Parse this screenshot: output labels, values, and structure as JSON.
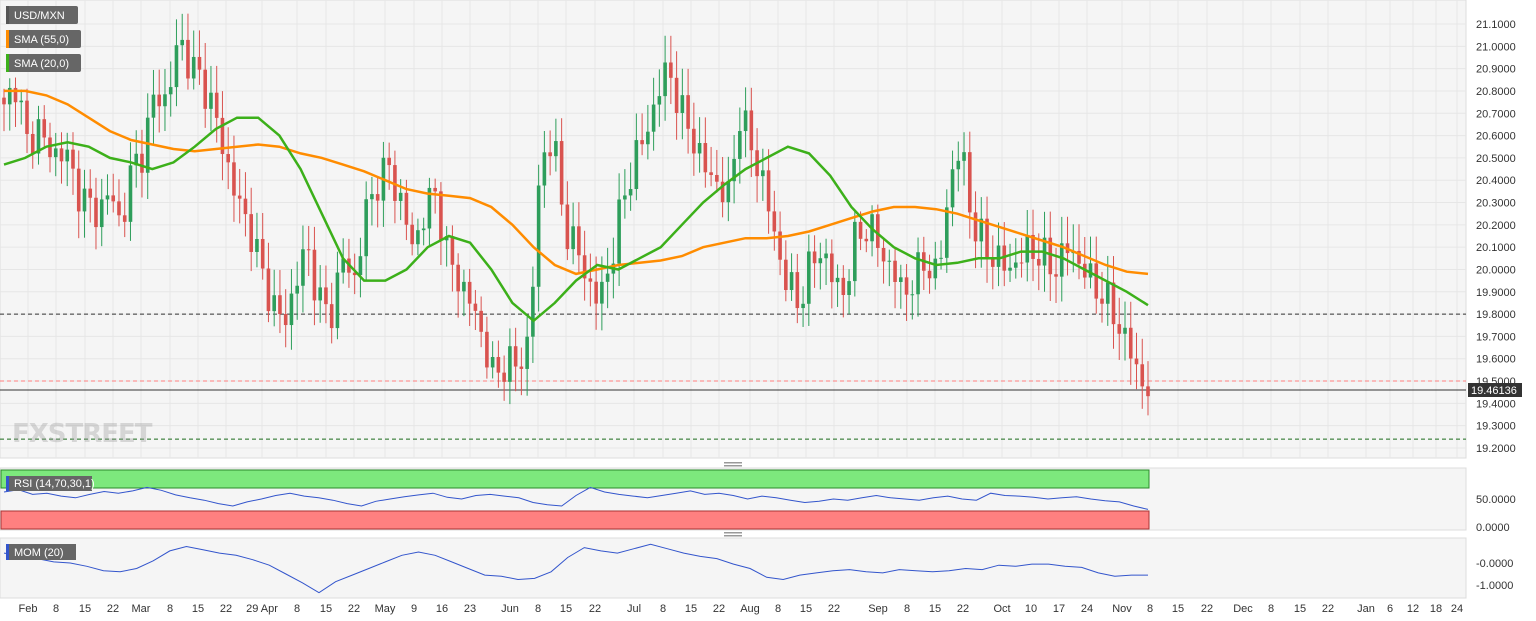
{
  "watermark": "FXSTREET",
  "colors": {
    "up": "#2e9e5b",
    "down": "#d9534f",
    "sma55": "#ff8c00",
    "sma20": "#3cb01a",
    "rsi_line": "#3355cc",
    "mom_line": "#3355cc",
    "rsi_overbought": "#7de87d",
    "rsi_oversold": "#ff8080",
    "grid": "#e6e6e6",
    "panel_bg": "#f5f5f5"
  },
  "legend": [
    {
      "label": "USD/MXN",
      "swatch": "#555555"
    },
    {
      "label": "SMA (55,0)",
      "swatch": "#ff8c00"
    },
    {
      "label": "SMA (20,0)",
      "swatch": "#3cb01a"
    }
  ],
  "price_badge": "19.46136",
  "rsi_label": "RSI (14,70,30,1)",
  "mom_label": "MOM (20)",
  "chart_data": [
    {
      "type": "candlestick",
      "title": "USD/MXN",
      "ylim": [
        19.15,
        21.15
      ],
      "y_ticks": [
        "19.2000",
        "19.3000",
        "19.4000",
        "19.5000",
        "19.6000",
        "19.7000",
        "19.8000",
        "19.9000",
        "20.0000",
        "20.1000",
        "20.2000",
        "20.3000",
        "20.4000",
        "20.5000",
        "20.6000",
        "20.7000",
        "20.8000",
        "20.9000",
        "21.0000",
        "21.1000"
      ],
      "x_ticks": [
        "Feb",
        "8",
        "15",
        "22",
        "Mar",
        "8",
        "15",
        "22",
        "29 Apr",
        "8",
        "15",
        "22",
        "May",
        "9",
        "16",
        "23",
        "Jun",
        "8",
        "15",
        "22",
        "Jul",
        "8",
        "15",
        "22",
        "Aug",
        "8",
        "15",
        "22",
        "Sep",
        "8",
        "15",
        "22",
        "Oct",
        "10",
        "17",
        "24",
        "Nov",
        "8",
        "15",
        "22",
        "Dec",
        "8",
        "15",
        "22",
        "Jan",
        "6",
        "12",
        "18",
        "24"
      ],
      "horizontal_levels": [
        {
          "value": 19.8,
          "style": "dashed",
          "color": "#333333"
        },
        {
          "value": 19.5,
          "style": "dashed",
          "color": "#ff8080"
        },
        {
          "value": 19.24,
          "style": "dashed",
          "color": "#1a6b1a"
        },
        {
          "value": 19.46,
          "style": "solid",
          "color": "#333333"
        }
      ],
      "ohlc_anchor_closes": [
        20.7,
        20.85,
        20.55,
        20.65,
        20.5,
        20.55,
        20.4,
        20.3,
        20.25,
        20.35,
        20.2,
        20.45,
        20.55,
        20.8,
        20.75,
        21.05,
        20.9,
        20.85,
        20.7,
        20.5,
        20.3,
        20.2,
        20.0,
        19.85,
        19.75,
        19.95,
        20.1,
        19.85,
        19.8,
        20.05,
        19.95,
        20.25,
        20.4,
        20.45,
        20.3,
        20.1,
        20.25,
        20.35,
        20.05,
        19.95,
        19.85,
        19.7,
        19.5,
        19.6,
        19.55,
        19.7,
        20.5,
        20.6,
        20.2,
        20.1,
        19.95,
        19.85,
        20.05,
        20.3,
        20.5,
        20.6,
        20.8,
        20.9,
        20.7,
        20.6,
        20.45,
        20.4,
        20.3,
        20.7,
        20.55,
        20.4,
        20.15,
        19.95,
        19.85,
        20.0,
        20.1,
        19.95,
        19.9,
        20.15,
        20.2,
        20.1,
        20.0,
        19.9,
        19.95,
        20.05,
        19.95,
        20.4,
        20.55,
        20.2,
        20.1,
        20.05,
        20.0,
        20.05,
        20.1,
        20.05,
        20.0,
        20.1,
        20.05,
        19.95,
        19.9,
        19.8,
        19.7,
        19.55,
        19.46
      ],
      "series": [
        {
          "name": "SMA (55,0)",
          "values": [
            20.8,
            20.8,
            20.78,
            20.74,
            20.68,
            20.62,
            20.58,
            20.56,
            20.54,
            20.53,
            20.54,
            20.55,
            20.56,
            20.55,
            20.52,
            20.5,
            20.47,
            20.44,
            20.4,
            20.36,
            20.34,
            20.33,
            20.32,
            20.28,
            20.2,
            20.1,
            20.02,
            19.98,
            20.0,
            20.02,
            20.03,
            20.04,
            20.06,
            20.1,
            20.12,
            20.14,
            20.14,
            20.15,
            20.17,
            20.2,
            20.23,
            20.26,
            20.28,
            20.28,
            20.27,
            20.25,
            20.22,
            20.19,
            20.16,
            20.13,
            20.1,
            20.06,
            20.02,
            19.99,
            19.98
          ]
        },
        {
          "name": "SMA (20,0)",
          "values": [
            20.47,
            20.5,
            20.55,
            20.57,
            20.55,
            20.5,
            20.48,
            20.45,
            20.48,
            20.55,
            20.63,
            20.68,
            20.68,
            20.6,
            20.45,
            20.25,
            20.05,
            19.95,
            19.95,
            20.0,
            20.1,
            20.15,
            20.12,
            20.0,
            19.85,
            19.77,
            19.85,
            19.95,
            20.02,
            20.0,
            20.05,
            20.1,
            20.2,
            20.3,
            20.38,
            20.45,
            20.5,
            20.55,
            20.52,
            20.42,
            20.28,
            20.18,
            20.1,
            20.05,
            20.02,
            20.03,
            20.05,
            20.05,
            20.08,
            20.08,
            20.05,
            20.0,
            19.95,
            19.9,
            19.84
          ]
        }
      ]
    },
    {
      "type": "line",
      "title": "RSI (14,70,30,1)",
      "ylim": [
        0,
        100
      ],
      "y_ticks": [
        "50.0000",
        "0.0000"
      ],
      "series": [
        {
          "name": "RSI (14,70,30,1)",
          "values": [
            62,
            66,
            58,
            60,
            55,
            52,
            58,
            63,
            60,
            64,
            70,
            65,
            57,
            52,
            48,
            42,
            38,
            45,
            50,
            56,
            60,
            55,
            52,
            48,
            42,
            38,
            46,
            50,
            54,
            57,
            60,
            53,
            50,
            56,
            58,
            55,
            52,
            44,
            40,
            38,
            56,
            70,
            62,
            58,
            55,
            52,
            56,
            60,
            64,
            58,
            60,
            56,
            50,
            55,
            52,
            48,
            44,
            46,
            50,
            48,
            52,
            56,
            52,
            50,
            48,
            52,
            55,
            50,
            48,
            60,
            56,
            55,
            53,
            50,
            52,
            54,
            50,
            47,
            45,
            38,
            32
          ]
        }
      ]
    },
    {
      "type": "line",
      "title": "MOM (20)",
      "y_ticks": [
        "-0.0000",
        "-1.0000"
      ],
      "series": [
        {
          "name": "MOM (20)",
          "values": [
            0.45,
            0.35,
            0.2,
            0.05,
            0.0,
            -0.15,
            -0.35,
            -0.4,
            -0.25,
            0.1,
            0.55,
            0.75,
            0.6,
            0.45,
            0.35,
            0.15,
            -0.1,
            -0.5,
            -0.9,
            -1.35,
            -0.85,
            -0.55,
            -0.25,
            0.05,
            0.35,
            0.5,
            0.35,
            0.05,
            -0.25,
            -0.55,
            -0.6,
            -0.75,
            -0.7,
            -0.4,
            0.25,
            0.7,
            0.55,
            0.45,
            0.65,
            0.85,
            0.65,
            0.45,
            0.3,
            0.2,
            -0.05,
            -0.25,
            -0.65,
            -0.75,
            -0.55,
            -0.45,
            -0.35,
            -0.3,
            -0.4,
            -0.45,
            -0.3,
            -0.35,
            -0.4,
            -0.35,
            -0.25,
            -0.3,
            -0.1,
            -0.15,
            -0.05,
            -0.05,
            -0.15,
            -0.2,
            -0.45,
            -0.6,
            -0.55,
            -0.55
          ]
        }
      ]
    }
  ]
}
